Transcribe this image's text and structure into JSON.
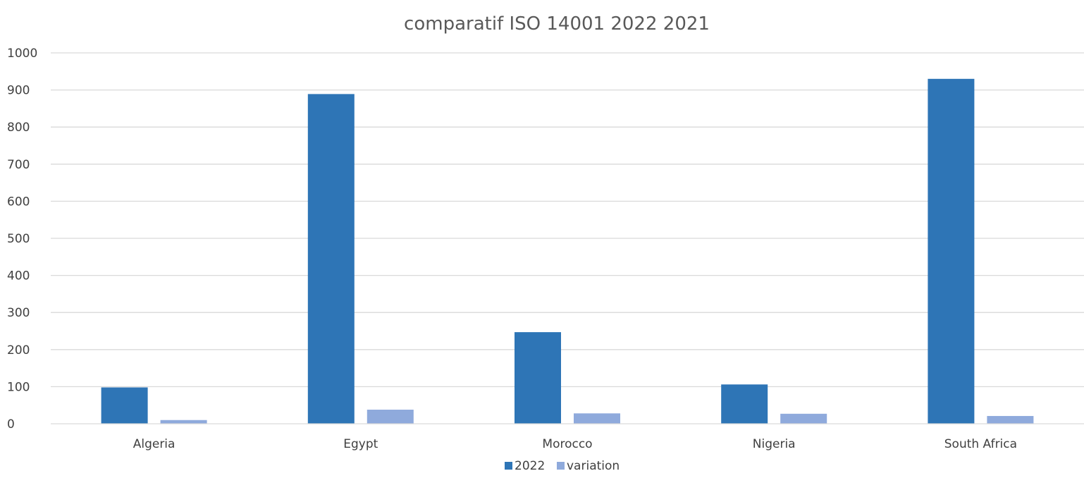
{
  "chart_data": {
    "type": "bar",
    "title": "comparatif ISO 14001 2022 2021",
    "xlabel": "",
    "ylabel": "",
    "categories": [
      "Algeria",
      "Egypt",
      "Morocco",
      "Nigeria",
      "South Africa"
    ],
    "series": [
      {
        "name": "2022",
        "values": [
          98,
          889,
          247,
          106,
          930
        ],
        "color": "#2E75B6"
      },
      {
        "name": "variation",
        "values": [
          10,
          38,
          28,
          27,
          21
        ],
        "color": "#8FAADC"
      }
    ],
    "ylim": [
      0,
      1000
    ],
    "yticks": [
      0,
      100,
      200,
      300,
      400,
      500,
      600,
      700,
      800,
      900,
      1000
    ],
    "grid": true,
    "gridline_color": "#D9D9D9",
    "legend_position": "bottom"
  }
}
